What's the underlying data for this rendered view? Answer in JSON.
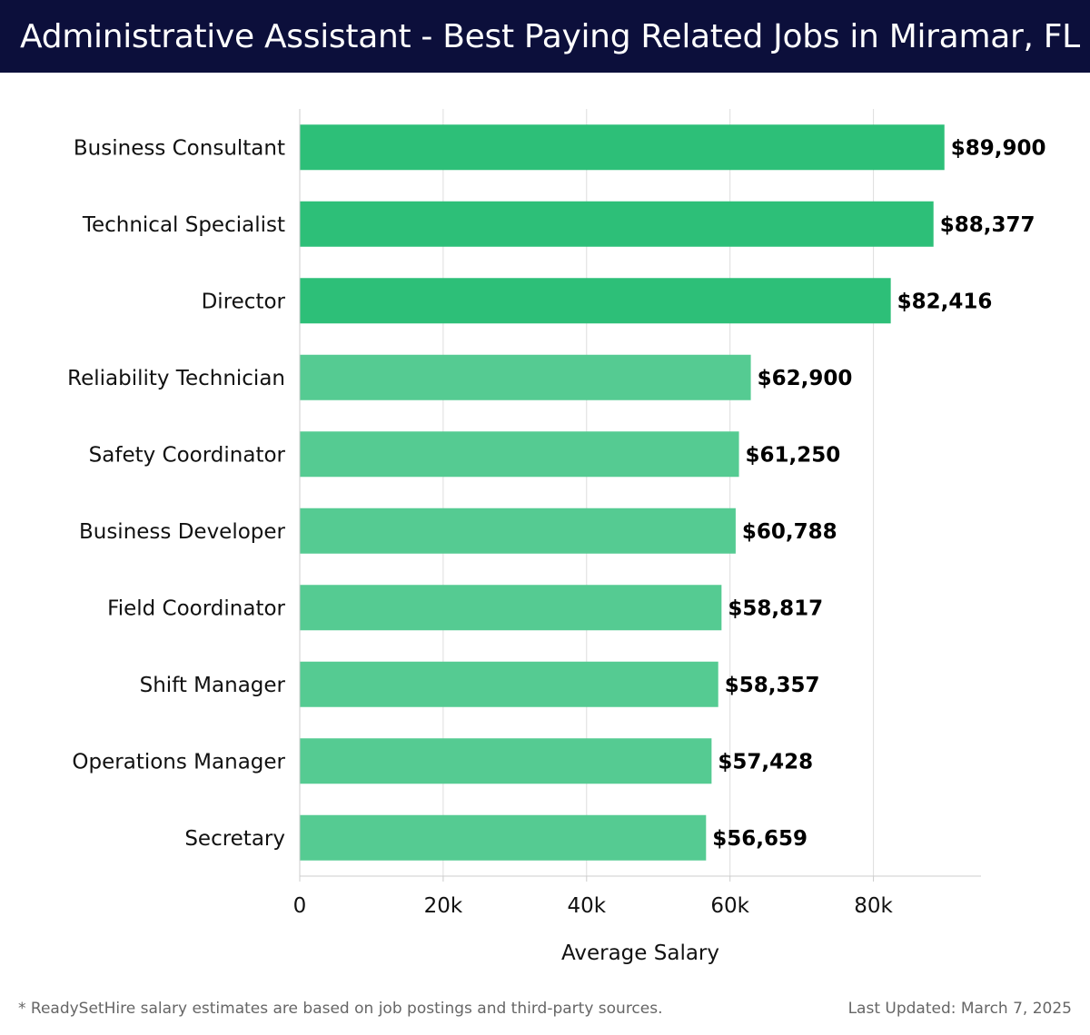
{
  "header": {
    "title": "Administrative Assistant - Best Paying Related Jobs in Miramar, FL"
  },
  "chart_data": {
    "type": "bar",
    "orientation": "horizontal",
    "title": "Administrative Assistant - Best Paying Related Jobs in Miramar, FL",
    "xlabel": "Average Salary",
    "ylabel": "",
    "xlim": [
      0,
      95000
    ],
    "x_ticks": [
      0,
      20000,
      40000,
      60000,
      80000
    ],
    "x_tick_labels": [
      "0",
      "20k",
      "40k",
      "60k",
      "80k"
    ],
    "grid": true,
    "categories": [
      "Business Consultant",
      "Technical Specialist",
      "Director",
      "Reliability Technician",
      "Safety Coordinator",
      "Business Developer",
      "Field Coordinator",
      "Shift Manager",
      "Operations Manager",
      "Secretary"
    ],
    "values": [
      89900,
      88377,
      82416,
      62900,
      61250,
      60788,
      58817,
      58357,
      57428,
      56659
    ],
    "value_labels": [
      "$89,900",
      "$88,377",
      "$82,416",
      "$62,900",
      "$61,250",
      "$60,788",
      "$58,817",
      "$58,357",
      "$57,428",
      "$56,659"
    ],
    "highlight_top": 3,
    "colors": {
      "top": "#2dbf78",
      "rest": "#55cb92",
      "grid": "#dddddd",
      "axis": "#cccccc",
      "text": "#111111"
    }
  },
  "footer": {
    "note": "* ReadySetHire salary estimates are based on job postings and third-party sources.",
    "updated": "Last Updated: March 7, 2025"
  }
}
